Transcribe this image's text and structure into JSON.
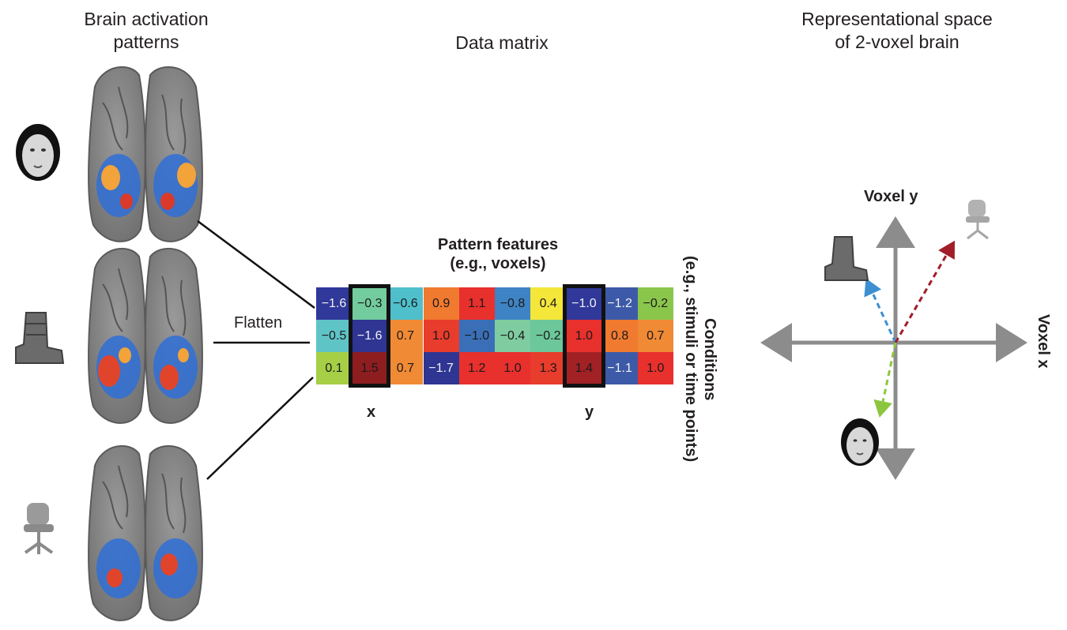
{
  "titles": {
    "brain": "Brain activation\npatterns",
    "matrix": "Data matrix",
    "space": "Representational space\nof 2-voxel brain"
  },
  "flatten_label": "Flatten",
  "matrix": {
    "features_label": "Pattern features\n(e.g., voxels)",
    "conditions_label": "Conditions\n(e.g., stimuli or time points)",
    "x_label": "x",
    "y_label": "y",
    "rows": [
      [
        "−1.6",
        "−0.3",
        "−0.6",
        "0.9",
        "1.1",
        "−0.8",
        "0.4",
        "−1.0",
        "−1.2",
        "−0.2"
      ],
      [
        "−0.5",
        "−1.6",
        "0.7",
        "1.0",
        "−1.0",
        "−0.4",
        "−0.2",
        "1.0",
        "0.8",
        "0.7"
      ],
      [
        "0.1",
        "1.5",
        "0.7",
        "−1.7",
        "1.2",
        "1.0",
        "1.3",
        "1.4",
        "−1.1",
        "1.0"
      ]
    ],
    "colors": [
      [
        "#30389a",
        "#73cc9e",
        "#4fbfcc",
        "#f07a30",
        "#e8302d",
        "#3e83c4",
        "#f5e63a",
        "#30389a",
        "#3d5aa8",
        "#8bc64c"
      ],
      [
        "#5fc4c6",
        "#2e3592",
        "#f08a35",
        "#e83c2c",
        "#3a6fb8",
        "#7fcca0",
        "#6cc79a",
        "#e8302d",
        "#f07a30",
        "#f08a35"
      ],
      [
        "#a6cf45",
        "#8e1d20",
        "#f08a35",
        "#2e3592",
        "#e8302d",
        "#e8302d",
        "#e83c2c",
        "#a12125",
        "#3d5aa8",
        "#e8302d"
      ]
    ],
    "light_text": [
      [
        true,
        false,
        false,
        false,
        false,
        false,
        false,
        true,
        true,
        false
      ],
      [
        false,
        true,
        false,
        false,
        false,
        false,
        false,
        false,
        false,
        false
      ],
      [
        false,
        false,
        false,
        true,
        false,
        false,
        false,
        false,
        true,
        false
      ]
    ],
    "highlighted_columns": [
      1,
      7
    ]
  },
  "space": {
    "axis_y_label": "Voxel y",
    "axis_x_label": "Voxel x",
    "vectors": [
      {
        "stimulus": "boot",
        "color": "#3c8fd0"
      },
      {
        "stimulus": "chair",
        "color": "#a11d2a"
      },
      {
        "stimulus": "face",
        "color": "#8cc63f"
      }
    ]
  },
  "stimuli_icons": [
    "face-icon",
    "boot-icon",
    "chair-icon"
  ]
}
